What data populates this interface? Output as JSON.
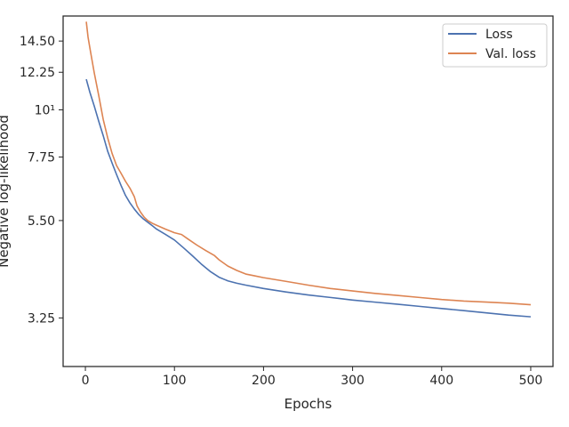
{
  "chart_data": {
    "type": "line",
    "title": "",
    "xlabel": "Epochs",
    "ylabel": "Negative log-likelihood",
    "xlim": [
      -25,
      525
    ],
    "ylim": [
      2.5,
      16.6
    ],
    "yscale": "log",
    "grid": false,
    "legend_position": "top-right",
    "x_ticks": [
      0,
      100,
      200,
      300,
      400,
      500
    ],
    "x_tick_labels": [
      "0",
      "100",
      "200",
      "300",
      "400",
      "500"
    ],
    "y_ticks": [
      3.25,
      5.5,
      7.75,
      10,
      12.25,
      14.5
    ],
    "y_tick_labels": [
      "3.25",
      "5.50",
      "7.75",
      "10¹",
      "12.25",
      "14.50"
    ],
    "series": [
      {
        "name": "Loss",
        "color": "#4c72b0",
        "x": [
          1,
          5,
          10,
          15,
          20,
          25,
          30,
          35,
          40,
          45,
          50,
          55,
          60,
          65,
          70,
          75,
          80,
          90,
          100,
          110,
          120,
          130,
          140,
          150,
          160,
          170,
          180,
          200,
          225,
          250,
          275,
          300,
          325,
          350,
          375,
          400,
          425,
          450,
          475,
          500
        ],
        "values": [
          11.8,
          11.0,
          10.2,
          9.4,
          8.7,
          8.0,
          7.5,
          7.05,
          6.65,
          6.3,
          6.05,
          5.85,
          5.68,
          5.55,
          5.45,
          5.35,
          5.25,
          5.1,
          4.95,
          4.75,
          4.55,
          4.35,
          4.18,
          4.05,
          3.97,
          3.92,
          3.88,
          3.81,
          3.74,
          3.68,
          3.63,
          3.58,
          3.54,
          3.5,
          3.46,
          3.42,
          3.38,
          3.34,
          3.3,
          3.27
        ]
      },
      {
        "name": "Val. loss",
        "color": "#dd8452",
        "x": [
          1,
          3,
          6,
          10,
          15,
          20,
          25,
          30,
          35,
          40,
          45,
          50,
          55,
          58,
          62,
          66,
          70,
          75,
          80,
          90,
          100,
          108,
          115,
          125,
          135,
          145,
          150,
          160,
          170,
          180,
          190,
          200,
          225,
          250,
          275,
          300,
          325,
          350,
          375,
          400,
          425,
          450,
          475,
          500
        ],
        "values": [
          16.1,
          14.8,
          13.6,
          12.2,
          10.8,
          9.5,
          8.6,
          7.9,
          7.4,
          7.1,
          6.8,
          6.55,
          6.25,
          5.95,
          5.75,
          5.6,
          5.5,
          5.42,
          5.36,
          5.25,
          5.15,
          5.1,
          4.98,
          4.82,
          4.68,
          4.55,
          4.45,
          4.3,
          4.2,
          4.12,
          4.08,
          4.04,
          3.96,
          3.88,
          3.81,
          3.76,
          3.71,
          3.67,
          3.63,
          3.59,
          3.56,
          3.54,
          3.52,
          3.49
        ]
      }
    ]
  }
}
